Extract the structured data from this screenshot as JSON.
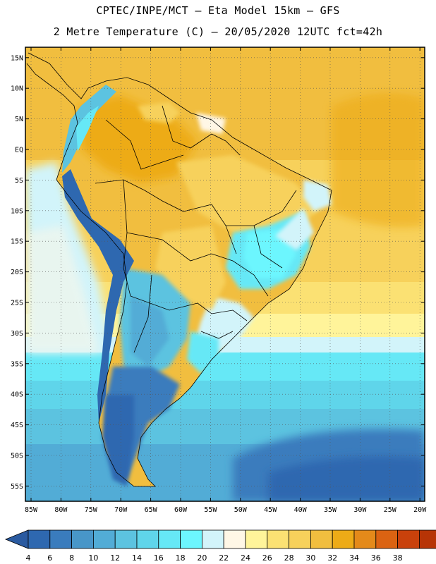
{
  "title_line1": "CPTEC/INPE/MCT –  Eta Model 15km – GFS",
  "title_line2": "2 Metre Temperature (C) – 20/05/2020 12UTC fct=42h",
  "lat_labels": [
    "15N",
    "10N",
    "5N",
    "EQ",
    "5S",
    "10S",
    "15S",
    "20S",
    "25S",
    "30S",
    "35S",
    "40S",
    "45S",
    "50S",
    "55S"
  ],
  "lat_values": [
    15,
    10,
    5,
    0,
    -5,
    -10,
    -15,
    -20,
    -25,
    -30,
    -35,
    -40,
    -45,
    -50,
    -55
  ],
  "lon_labels": [
    "85W",
    "80W",
    "75W",
    "70W",
    "65W",
    "60W",
    "55W",
    "50W",
    "45W",
    "40W",
    "35W",
    "30W",
    "25W",
    "20W"
  ],
  "lon_values": [
    -85,
    -80,
    -75,
    -70,
    -65,
    -60,
    -55,
    -50,
    -45,
    -40,
    -35,
    -30,
    -25,
    -20
  ],
  "colorbar": {
    "labels": [
      "4",
      "6",
      "8",
      "10",
      "12",
      "14",
      "16",
      "18",
      "20",
      "22",
      "24",
      "26",
      "28",
      "30",
      "32",
      "34",
      "36",
      "38"
    ],
    "colors": [
      "#2e68b0",
      "#3a7cbd",
      "#4896c8",
      "#52acd6",
      "#5cc3e0",
      "#5fd5ea",
      "#66e8f6",
      "#6cf6fe",
      "#d2f4fa",
      "#fff7e6",
      "#fff49a",
      "#fbe173",
      "#f7d15b",
      "#f1be3f",
      "#edab17",
      "#e48a1a",
      "#db6312",
      "#c9410b",
      "#b73406"
    ],
    "under_color": "#2a5aa0",
    "over_color": "#b73406"
  }
}
